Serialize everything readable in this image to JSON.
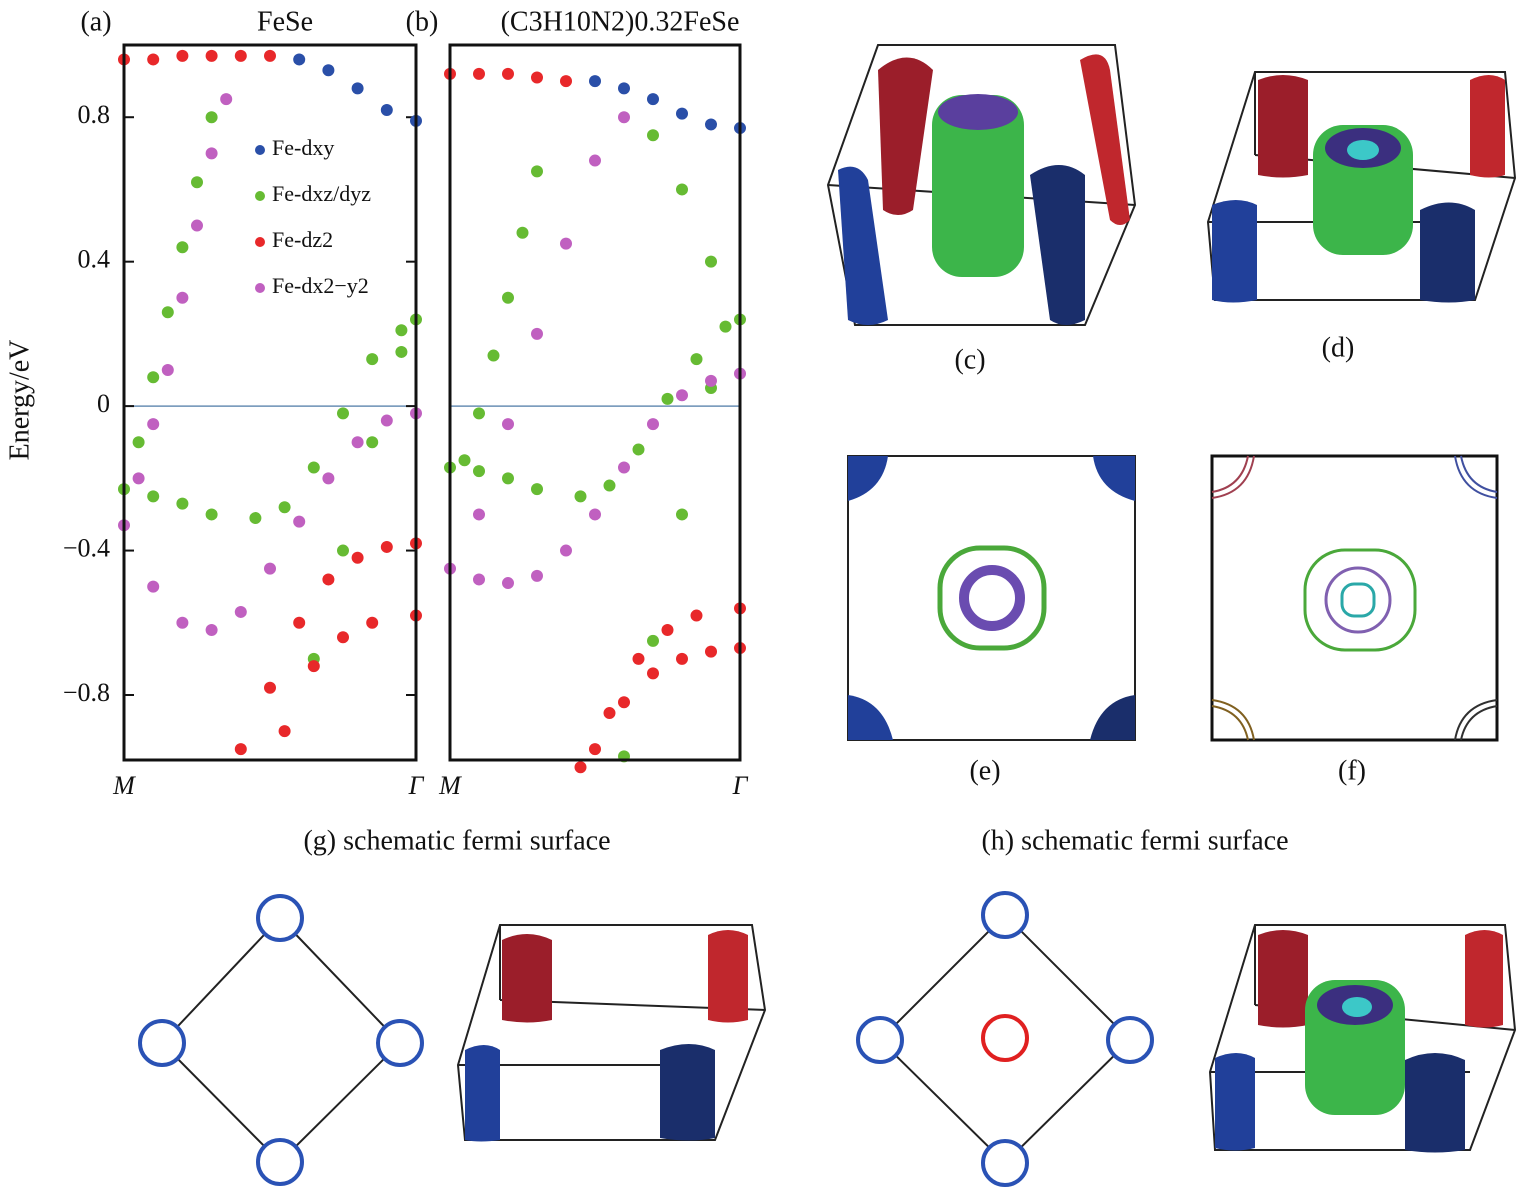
{
  "chart_data": [
    {
      "type": "scatter",
      "panel_label": "(a)",
      "title": "FeSe",
      "ylabel": "Energy/eV",
      "ylim": [
        -0.98,
        1.0
      ],
      "yticks": [
        {
          "value": -0.8,
          "label": "−0.8"
        },
        {
          "value": -0.4,
          "label": "−0.4"
        },
        0,
        0.4,
        0.8
      ],
      "xlim": [
        0,
        1
      ],
      "xticks": [
        {
          "value": 0,
          "label": "M"
        },
        {
          "value": 1,
          "label": "Γ"
        }
      ],
      "fermi_level": 0,
      "series": [
        {
          "name": "Fe-dxy",
          "color": "#2a4fa8",
          "x": [
            0.6,
            0.7,
            0.8,
            0.9,
            1.0
          ],
          "values": [
            0.96,
            0.93,
            0.88,
            0.82,
            0.79
          ]
        },
        {
          "name": "Fe-dxz/dyz",
          "color": "#66bb33",
          "x": [
            0.05,
            0.1,
            0.15,
            0.2,
            0.25,
            0.3,
            0,
            0.1,
            0.2,
            0.3,
            0.45,
            0.55,
            0.65,
            0.75,
            0.85,
            0.95,
            1,
            0.65,
            0.75,
            0.85,
            0.95
          ],
          "values": [
            -0.1,
            0.08,
            0.26,
            0.44,
            0.62,
            0.8,
            -0.23,
            -0.25,
            -0.27,
            -0.3,
            -0.31,
            -0.28,
            -0.17,
            -0.02,
            0.13,
            0.21,
            0.24,
            -0.7,
            -0.4,
            -0.1,
            0.15
          ]
        },
        {
          "name": "Fe-dz2",
          "color": "#e8282a",
          "x": [
            0,
            0.1,
            0.2,
            0.3,
            0.4,
            0.5,
            0.4,
            0.5,
            0.6,
            0.7,
            0.8,
            0.9,
            1,
            0.55,
            0.65,
            0.75,
            0.85,
            1
          ],
          "values": [
            0.96,
            0.96,
            0.97,
            0.97,
            0.97,
            0.97,
            -0.95,
            -0.78,
            -0.6,
            -0.48,
            -0.42,
            -0.39,
            -0.38,
            -0.9,
            -0.72,
            -0.64,
            -0.6,
            -0.58
          ]
        },
        {
          "name": "Fe-dx2−y2",
          "color": "#c060c0",
          "x": [
            0.05,
            0.1,
            0.15,
            0.2,
            0.25,
            0.3,
            0.35,
            0,
            0.1,
            0.2,
            0.3,
            0.4,
            0.5,
            0.6,
            0.7,
            0.8,
            0.9,
            1
          ],
          "values": [
            -0.2,
            -0.05,
            0.1,
            0.3,
            0.5,
            0.7,
            0.85,
            -0.33,
            -0.5,
            -0.6,
            -0.62,
            -0.57,
            -0.45,
            -0.32,
            -0.2,
            -0.1,
            -0.04,
            -0.02
          ]
        }
      ]
    },
    {
      "type": "scatter",
      "panel_label": "(b)",
      "title": "(C3H10N2)0.32FeSe",
      "ylim": [
        -0.98,
        1.0
      ],
      "xlim": [
        0,
        1
      ],
      "xticks": [
        {
          "value": 0,
          "label": "M"
        },
        {
          "value": 1,
          "label": "Γ"
        }
      ],
      "fermi_level": 0,
      "series": [
        {
          "name": "Fe-dxy",
          "color": "#2a4fa8",
          "x": [
            0.5,
            0.6,
            0.7,
            0.8,
            0.9,
            1
          ],
          "values": [
            0.9,
            0.88,
            0.85,
            0.81,
            0.78,
            0.77
          ]
        },
        {
          "name": "Fe-dxz/dyz",
          "color": "#66bb33",
          "x": [
            0.05,
            0.1,
            0.15,
            0.2,
            0.25,
            0.3,
            0,
            0.1,
            0.2,
            0.3,
            0.45,
            0.55,
            0.65,
            0.75,
            0.85,
            0.95,
            1,
            0.6,
            0.7,
            0.8,
            0.9,
            0.7,
            0.8,
            0.9
          ],
          "values": [
            -0.15,
            -0.02,
            0.14,
            0.3,
            0.48,
            0.65,
            -0.17,
            -0.18,
            -0.2,
            -0.23,
            -0.25,
            -0.22,
            -0.12,
            0.02,
            0.13,
            0.22,
            0.24,
            -0.97,
            -0.65,
            -0.3,
            0.05,
            0.75,
            0.6,
            0.4
          ]
        },
        {
          "name": "Fe-dz2",
          "color": "#e8282a",
          "x": [
            0,
            0.1,
            0.2,
            0.3,
            0.4,
            0.45,
            0.55,
            0.65,
            0.75,
            0.85,
            1,
            0.5,
            0.6,
            0.7,
            0.8,
            0.9,
            1
          ],
          "values": [
            0.92,
            0.92,
            0.92,
            0.91,
            0.9,
            -1.0,
            -0.85,
            -0.7,
            -0.62,
            -0.58,
            -0.56,
            -0.95,
            -0.82,
            -0.74,
            -0.7,
            -0.68,
            -0.67
          ]
        },
        {
          "name": "Fe-dx2−y2",
          "color": "#c060c0",
          "x": [
            0.1,
            0.2,
            0.3,
            0.4,
            0.5,
            0.6,
            0,
            0.1,
            0.2,
            0.3,
            0.4,
            0.5,
            0.6,
            0.7,
            0.8,
            0.9,
            1
          ],
          "values": [
            -0.3,
            -0.05,
            0.2,
            0.45,
            0.68,
            0.8,
            -0.45,
            -0.48,
            -0.49,
            -0.47,
            -0.4,
            -0.3,
            -0.17,
            -0.05,
            0.03,
            0.07,
            0.09
          ]
        }
      ]
    }
  ],
  "panels": [
    {
      "label": "(c)"
    },
    {
      "label": "(d)"
    },
    {
      "label": "(e)"
    },
    {
      "label": "(f)"
    },
    {
      "label": "(g) schematic fermi surface"
    },
    {
      "label": "(h) schematic fermi surface"
    }
  ]
}
